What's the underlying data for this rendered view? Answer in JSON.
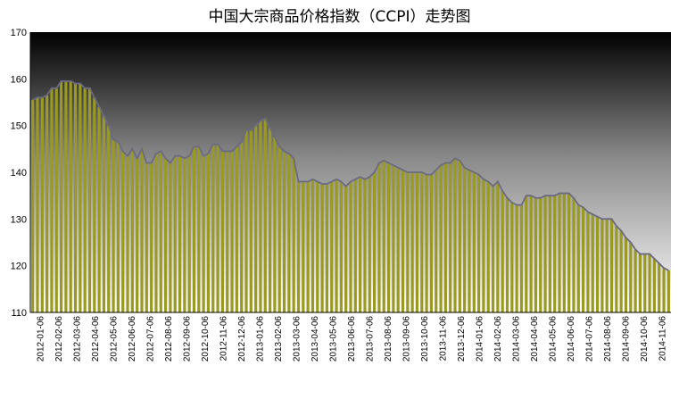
{
  "chart_data": {
    "type": "area",
    "title": "中国大宗商品价格指数（CCPI）走势图",
    "xlabel": "",
    "ylabel": "",
    "ylim": [
      110,
      170
    ],
    "yticks": [
      "110",
      "120",
      "130",
      "140",
      "150",
      "160",
      "170"
    ],
    "xticks": [
      "2012-01-06",
      "2012-02-06",
      "2012-03-06",
      "2012-04-06",
      "2012-05-06",
      "2012-06-06",
      "2012-07-06",
      "2012-08-06",
      "2012-09-06",
      "2012-10-06",
      "2012-11-06",
      "2012-12-06",
      "2013-01-06",
      "2013-02-06",
      "2013-03-06",
      "2013-04-06",
      "2013-05-06",
      "2013-06-06",
      "2013-07-06",
      "2013-08-06",
      "2013-09-06",
      "2013-10-06",
      "2013-11-06",
      "2013-12-06",
      "2014-01-06",
      "2014-02-06",
      "2014-03-06",
      "2014-04-06",
      "2014-05-06",
      "2014-06-06",
      "2014-07-06",
      "2014-08-06",
      "2014-09-06",
      "2014-10-06",
      "2014-11-06"
    ],
    "grid": false,
    "legend": "none",
    "fill_color": "#9a9a22",
    "line_color": "#6a6a82",
    "series": [
      {
        "values": [
          155.5,
          156,
          156,
          156.5,
          158,
          158,
          159.5,
          159.5,
          159.5,
          159,
          159,
          158,
          158,
          156,
          154,
          152,
          150,
          147,
          146.5,
          144.5,
          143.5,
          145,
          143,
          145,
          142,
          142,
          144,
          144.5,
          143,
          142,
          143.5,
          143.5,
          143,
          143.5,
          145.5,
          145.5,
          143.5,
          144,
          146,
          146,
          144.5,
          144.5,
          144.5,
          145.5,
          146.5,
          149,
          149,
          150,
          151,
          151.5,
          149.5,
          147.5,
          145.5,
          144.5,
          144,
          143,
          138,
          138,
          138,
          138.5,
          138,
          137.5,
          137.5,
          138,
          138.5,
          138,
          137,
          138,
          138.5,
          139,
          138.5,
          139,
          140,
          142,
          142.5,
          142,
          141.5,
          141,
          140.5,
          140,
          140,
          140,
          140,
          139.5,
          139.5,
          140.5,
          141.5,
          142,
          142,
          143,
          142.5,
          141,
          140.5,
          140,
          139.5,
          138.5,
          138,
          137,
          138,
          136,
          134.5,
          133.5,
          133,
          133,
          135,
          135,
          134.5,
          134.5,
          135,
          135,
          135,
          135.5,
          135.5,
          135.5,
          134.5,
          133,
          132.5,
          131.5,
          131,
          130.5,
          130,
          130,
          130,
          128.5,
          127.5,
          126,
          125,
          123.5,
          122.5,
          122.5,
          122.5,
          121.5,
          120.5,
          119.5,
          119
        ]
      }
    ]
  }
}
